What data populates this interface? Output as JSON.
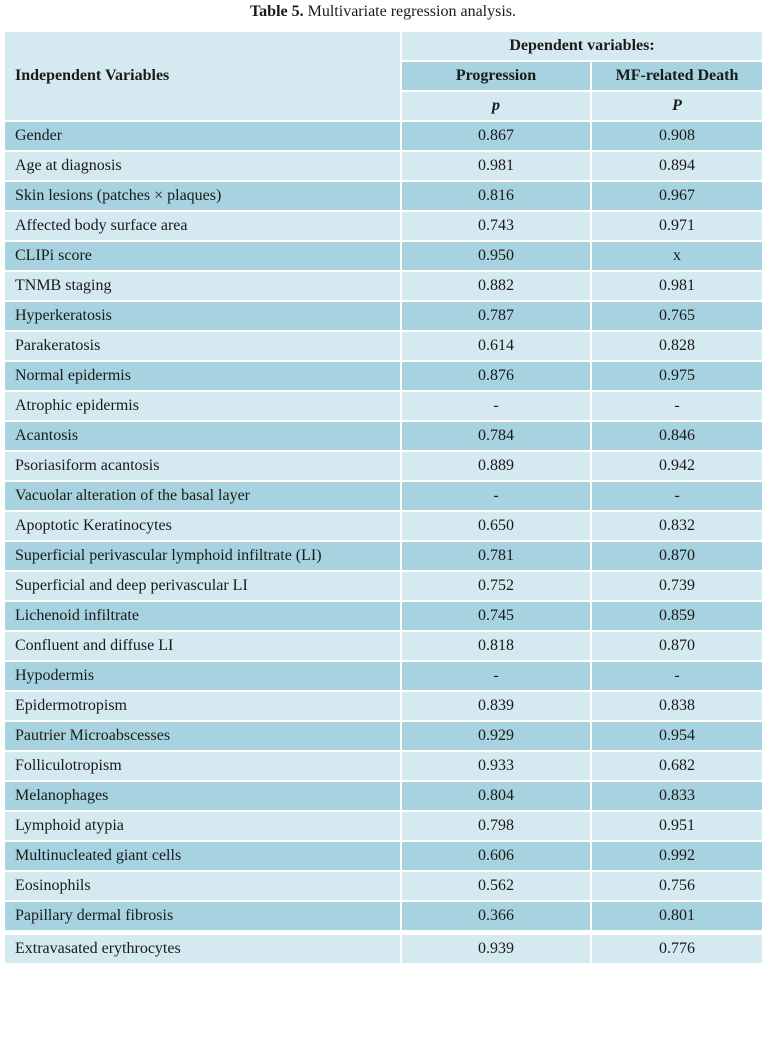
{
  "caption": {
    "label": "Table 5.",
    "text": " Multivariate regression analysis."
  },
  "header": {
    "independent": "Independent Variables",
    "dependent": "Dependent variables:",
    "col1": "Progression",
    "col2": "MF-related Death",
    "p1": "p",
    "p2": "P"
  },
  "rows": [
    {
      "label": "Gender",
      "progression": "0.867",
      "death": "0.908"
    },
    {
      "label": "Age at diagnosis",
      "progression": "0.981",
      "death": "0.894"
    },
    {
      "label": "Skin lesions (patches × plaques)",
      "progression": "0.816",
      "death": "0.967"
    },
    {
      "label": "Affected body surface area",
      "progression": "0.743",
      "death": "0.971"
    },
    {
      "label": "CLIPi score",
      "progression": "0.950",
      "death": "x"
    },
    {
      "label": "TNMB staging",
      "progression": "0.882",
      "death": "0.981"
    },
    {
      "label": "Hyperkeratosis",
      "progression": "0.787",
      "death": "0.765"
    },
    {
      "label": "Parakeratosis",
      "progression": "0.614",
      "death": "0.828"
    },
    {
      "label": "Normal epidermis",
      "progression": "0.876",
      "death": "0.975"
    },
    {
      "label": "Atrophic epidermis",
      "progression": "-",
      "death": "-"
    },
    {
      "label": "Acantosis",
      "progression": "0.784",
      "death": "0.846"
    },
    {
      "label": "Psoriasiform acantosis",
      "progression": "0.889",
      "death": "0.942"
    },
    {
      "label": "Vacuolar alteration of the basal layer",
      "progression": "-",
      "death": "-"
    },
    {
      "label": "Apoptotic Keratinocytes",
      "progression": "0.650",
      "death": "0.832"
    },
    {
      "label": "Superficial perivascular lymphoid infiltrate (LI)",
      "progression": "0.781",
      "death": "0.870"
    },
    {
      "label": "Superficial and deep perivascular LI",
      "progression": "0.752",
      "death": "0.739"
    },
    {
      "label": "Lichenoid infiltrate",
      "progression": "0.745",
      "death": "0.859"
    },
    {
      "label": "Confluent and diffuse LI",
      "progression": "0.818",
      "death": "0.870"
    },
    {
      "label": "Hypodermis",
      "progression": "-",
      "death": "-"
    },
    {
      "label": "Epidermotropism",
      "progression": "0.839",
      "death": "0.838"
    },
    {
      "label": "Pautrier Microabscesses",
      "progression": "0.929",
      "death": "0.954"
    },
    {
      "label": "Folliculotropism",
      "progression": "0.933",
      "death": "0.682"
    },
    {
      "label": "Melanophages",
      "progression": "0.804",
      "death": "0.833"
    },
    {
      "label": "Lymphoid atypia",
      "progression": "0.798",
      "death": "0.951"
    },
    {
      "label": "Multinucleated giant cells",
      "progression": "0.606",
      "death": "0.992"
    },
    {
      "label": "Eosinophils",
      "progression": "0.562",
      "death": "0.756"
    },
    {
      "label": "Papillary dermal fibrosis",
      "progression": "0.366",
      "death": "0.801"
    },
    {
      "label": "Extravasated erythrocytes",
      "progression": "0.939",
      "death": "0.776"
    }
  ]
}
